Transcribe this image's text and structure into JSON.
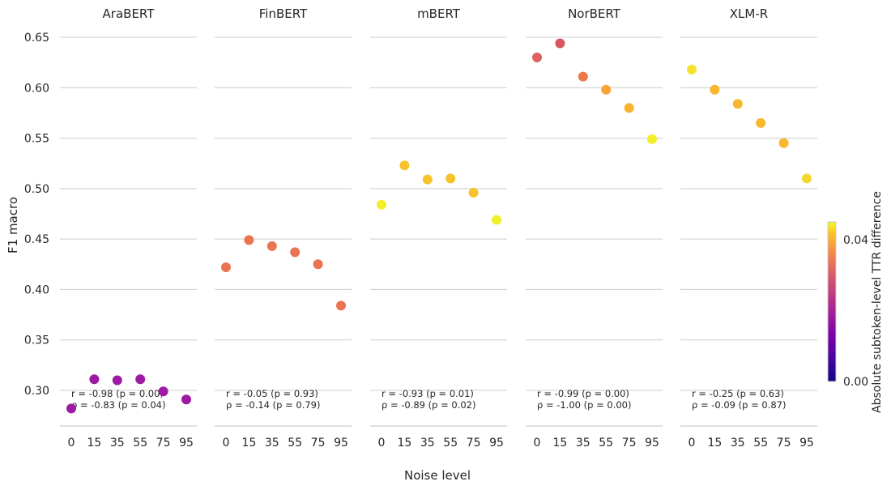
{
  "chart_data": {
    "type": "scatter",
    "xlabel": "Noise level",
    "ylabel": "F1 macro",
    "x_categories": [
      "0",
      "15",
      "35",
      "55",
      "75",
      "95"
    ],
    "yticks": [
      "0.30",
      "0.35",
      "0.40",
      "0.45",
      "0.50",
      "0.55",
      "0.60",
      "0.65"
    ],
    "ylim": [
      0.265,
      0.65
    ],
    "grid": "horizontal",
    "colorbar": {
      "label": "Absolute subtoken-level TTR difference",
      "colormap": "plasma",
      "range": [
        0.0,
        0.045
      ],
      "ticks": [
        "0.00",
        "0.04"
      ]
    },
    "panels": [
      {
        "title": "AraBERT",
        "values": [
          0.282,
          0.311,
          0.31,
          0.311,
          0.299,
          0.291
        ],
        "colors": [
          "#9d1aa4",
          "#9d1aa4",
          "#9d1aa4",
          "#9d1aa4",
          "#9d1aa4",
          "#9d1aa4"
        ],
        "stats": [
          "r = -0.98 (p = 0.00)",
          "ρ = -0.83 (p = 0.04)"
        ]
      },
      {
        "title": "FinBERT",
        "values": [
          0.422,
          0.449,
          0.443,
          0.437,
          0.425,
          0.384
        ],
        "colors": [
          "#ea7352",
          "#ea7352",
          "#ea7352",
          "#ea7352",
          "#ea7352",
          "#ea7352"
        ],
        "stats": [
          "r = -0.05 (p = 0.93)",
          "ρ = -0.14 (p = 0.79)"
        ]
      },
      {
        "title": "mBERT",
        "values": [
          0.484,
          0.523,
          0.509,
          0.51,
          0.496,
          0.469
        ],
        "colors": [
          "#f2ef29",
          "#f8c22b",
          "#f8c22b",
          "#f8c22b",
          "#f8c22b",
          "#f2ef29"
        ],
        "stats": [
          "r = -0.93 (p = 0.01)",
          "ρ = -0.89 (p = 0.02)"
        ]
      },
      {
        "title": "NorBERT",
        "values": [
          0.63,
          0.644,
          0.611,
          0.598,
          0.58,
          0.549
        ],
        "colors": [
          "#e0605f",
          "#d8575e",
          "#eb7a4c",
          "#f7a338",
          "#f9b22f",
          "#f3ef28"
        ],
        "stats": [
          "r = -0.99 (p = 0.00)",
          "ρ = -1.00 (p = 0.00)"
        ]
      },
      {
        "title": "XLM-R",
        "values": [
          0.618,
          0.598,
          0.584,
          0.565,
          0.545,
          0.51
        ],
        "colors": [
          "#f5e22a",
          "#f9b72d",
          "#f9b72d",
          "#f9b72d",
          "#f9b72d",
          "#f6d72c"
        ],
        "stats": [
          "r = -0.25 (p = 0.63)",
          "ρ = -0.09 (p = 0.87)"
        ]
      }
    ]
  }
}
